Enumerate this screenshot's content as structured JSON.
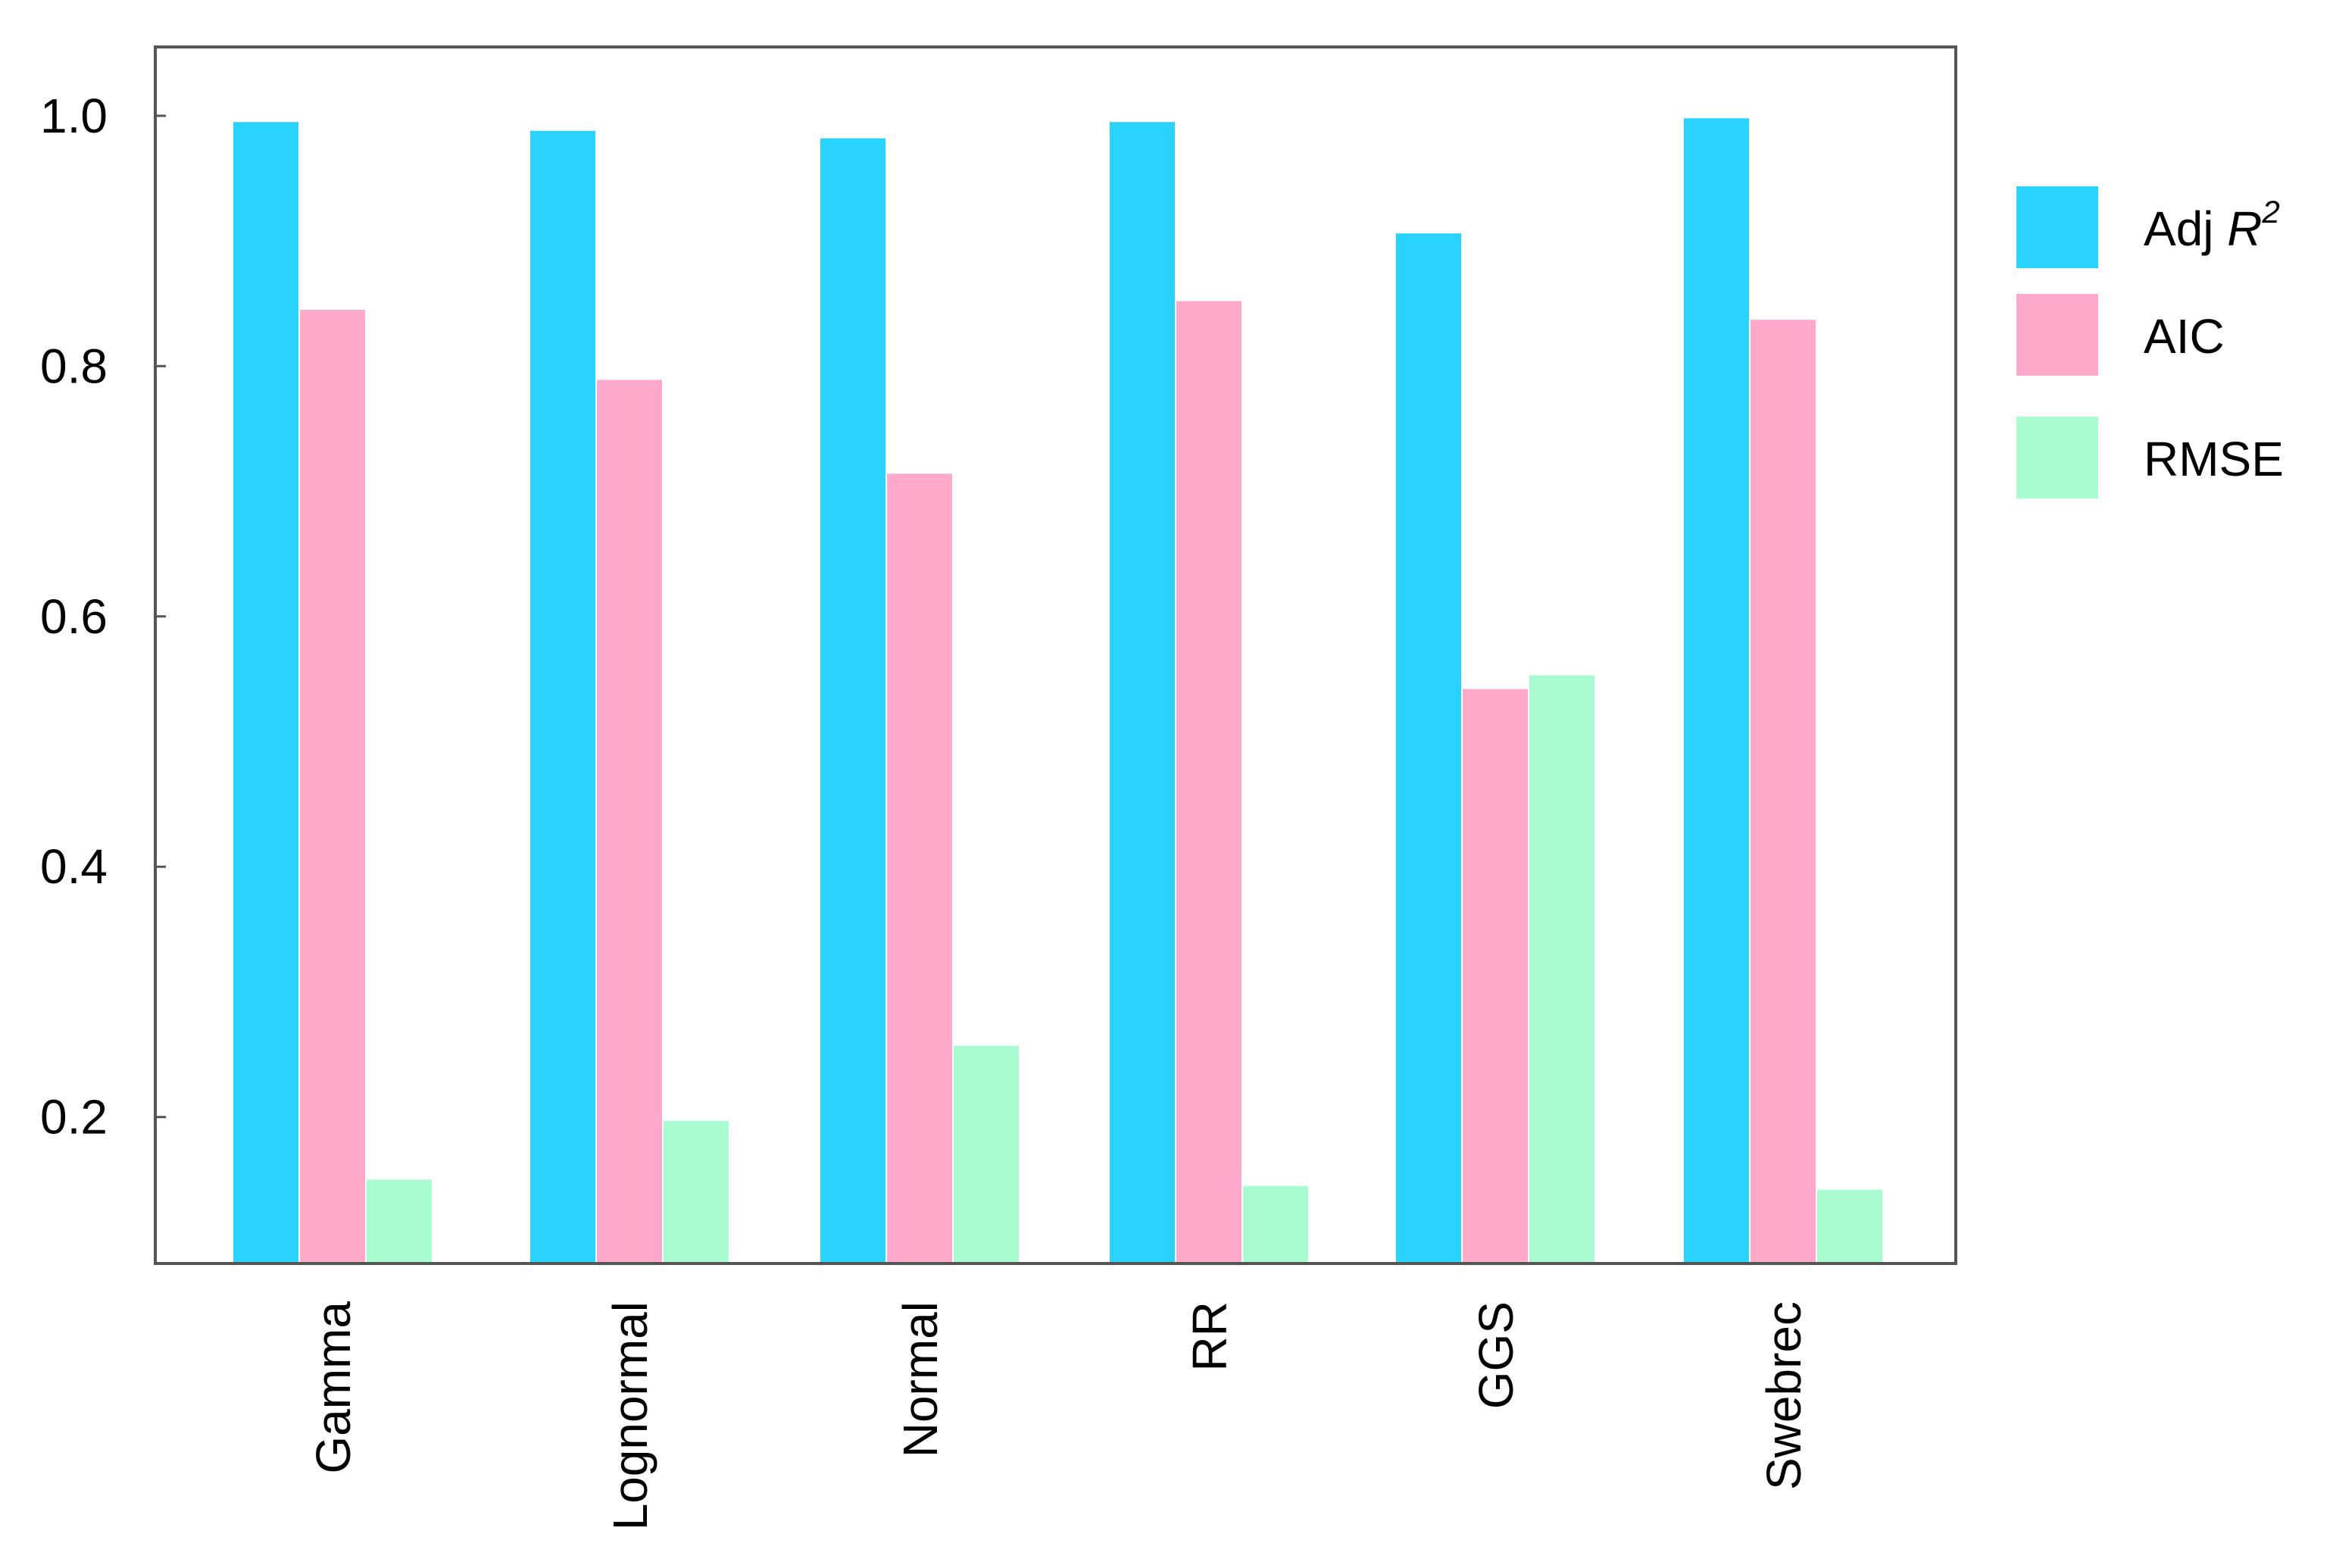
{
  "chart_data": {
    "type": "bar",
    "title": "",
    "xlabel": "",
    "ylabel": "",
    "categories": [
      "Gamma",
      "Lognormal",
      "Normal",
      "RR",
      "GGS",
      "Swebrec"
    ],
    "series": [
      {
        "name": "Adj R",
        "superscript": "2",
        "color": "#29d3fd",
        "values": [
          0.995,
          0.988,
          0.982,
          0.995,
          0.906,
          0.998
        ]
      },
      {
        "name": "AIC",
        "color": "#fea9cb",
        "values": [
          0.845,
          0.789,
          0.714,
          0.852,
          0.542,
          0.837
        ]
      },
      {
        "name": "RMSE",
        "color": "#a9fbd0",
        "values": [
          0.15,
          0.197,
          0.257,
          0.145,
          0.553,
          0.142
        ]
      }
    ],
    "ylim": [
      0.083,
      1.055
    ],
    "yticks": [
      "0.2",
      "0.4",
      "0.6",
      "0.8",
      "1.0"
    ],
    "grid": false,
    "legend_position": "right"
  }
}
